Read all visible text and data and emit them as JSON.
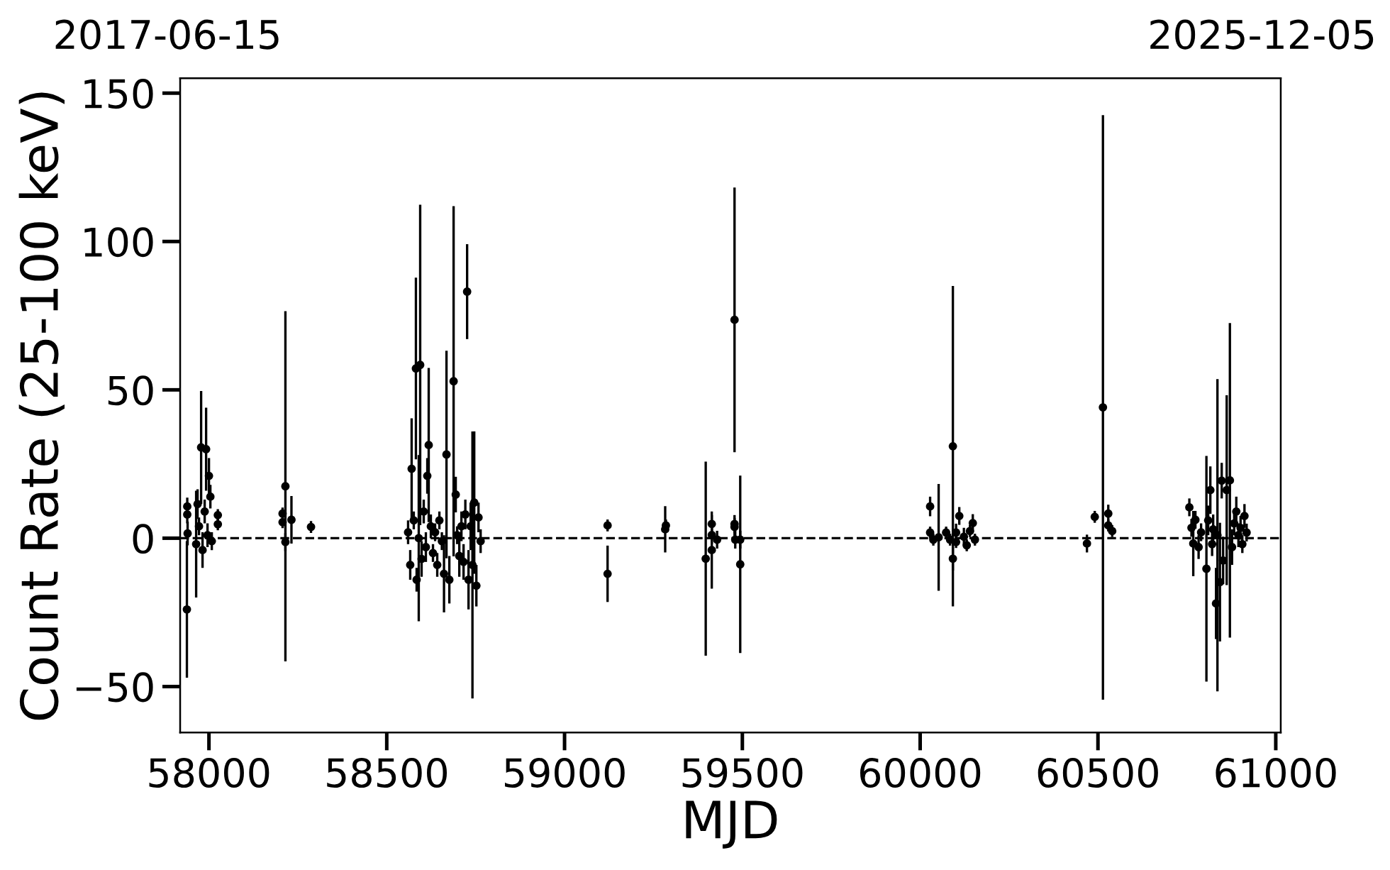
{
  "chart_data": {
    "type": "scatter",
    "xlabel": "MJD",
    "ylabel": "Count Rate (25-100 keV)",
    "annotations": [
      "2017-06-15",
      "2025-12-05"
    ],
    "xlim": [
      57919,
      61014
    ],
    "ylim": [
      -65.5,
      155
    ],
    "xticks": [
      58000,
      58500,
      59000,
      59500,
      60000,
      60500,
      61000
    ],
    "yticks": [
      {
        "value": -50,
        "label": "−50"
      },
      0,
      50,
      100,
      150
    ],
    "marker": "circle",
    "ref_lines": [
      {
        "axis": "y",
        "value": 0,
        "color": "#000000",
        "line_style": "dashed"
      }
    ],
    "series": [
      {
        "color": "#000000",
        "x": [
          57938,
          57939,
          57939,
          57940,
          57964,
          57968,
          57972,
          57978,
          57982,
          57988,
          57992,
          57996,
          58000,
          58004,
          58008,
          58025,
          58025,
          58207,
          58207,
          58215,
          58215,
          58232,
          58287,
          58560,
          58566,
          58570,
          58576,
          58582,
          58584,
          58590,
          58594,
          58598,
          58604,
          58610,
          58614,
          58618,
          58624,
          58630,
          58636,
          58642,
          58648,
          58655,
          58661,
          58668,
          58676,
          58688,
          58694,
          58698,
          58704,
          58710,
          58716,
          58721,
          58726,
          58730,
          58736,
          58741,
          58746,
          58752,
          58758,
          58764,
          59121,
          59121,
          59283,
          59285,
          59397,
          59414,
          59414,
          59414,
          59429,
          59478,
          59478,
          59478,
          59480,
          59494,
          59494,
          60028,
          60028,
          60037,
          60052,
          60073,
          60084,
          60092,
          60092,
          60101,
          60101,
          60110,
          60123,
          60131,
          60140,
          60148,
          60154,
          60469,
          60491,
          60514,
          60529,
          60529,
          60540,
          60757,
          60763,
          60768,
          60774,
          60783,
          60790,
          60805,
          60810,
          60816,
          60821,
          60824,
          60832,
          60836,
          60843,
          60848,
          60852,
          60862,
          60871,
          60877,
          60883,
          60889,
          60895,
          60901,
          60906,
          60912,
          60918
        ],
        "values": [
          -24,
          10.7,
          8,
          1.6,
          -2,
          11.5,
          4,
          30.6,
          -4,
          9,
          30,
          1,
          21,
          14,
          -1,
          7.8,
          4.7,
          8.3,
          5.4,
          17.5,
          -1.3,
          6.2,
          3.8,
          2,
          -9,
          23.4,
          6,
          57.2,
          -14,
          0,
          58.4,
          -7,
          9,
          -3,
          21,
          31.4,
          4,
          -5,
          2,
          -9,
          6,
          -1,
          -12,
          28.2,
          -14,
          52.9,
          14.7,
          1,
          -6,
          4,
          -8,
          8,
          83.1,
          -14,
          4,
          -9,
          12,
          -16,
          7,
          -1,
          4.3,
          -12,
          3,
          4.3,
          -6.9,
          4.8,
          1.1,
          -4,
          -0.5,
          73.6,
          4.8,
          3.8,
          -0.5,
          -8.8,
          -0.5,
          10.7,
          1.9,
          -0.5,
          0.3,
          1.9,
          -0.5,
          31,
          -6.9,
          1.9,
          -1.3,
          7.5,
          0.5,
          -2.4,
          2.4,
          5.1,
          -0.5,
          -1.8,
          7.2,
          44.1,
          8.3,
          4.3,
          2.4,
          10.4,
          3.5,
          -1.8,
          6.2,
          -3,
          2,
          -10.3,
          6,
          16.2,
          -2,
          3,
          -22,
          1,
          -14.8,
          19.4,
          -7.5,
          16.2,
          19.5,
          -3,
          5,
          9,
          1,
          3.5,
          -2,
          7.5,
          1.9
        ],
        "errors": [
          23,
          3,
          3,
          4,
          18,
          5,
          3,
          19,
          6,
          4,
          14,
          4,
          6,
          4,
          3,
          2,
          2,
          2,
          2,
          59,
          3,
          8,
          2,
          4,
          5,
          17,
          3,
          30.6,
          4,
          28,
          54,
          6,
          4,
          5,
          6,
          26,
          4,
          3,
          3,
          4,
          3,
          3,
          13,
          35,
          8,
          59,
          6,
          3,
          7,
          5,
          6,
          5,
          16,
          10,
          8,
          45,
          24,
          7,
          5,
          4,
          2,
          9.5,
          7.8,
          2,
          32.7,
          3,
          3,
          13,
          3,
          44.6,
          3,
          3,
          3,
          29.9,
          3,
          3.3,
          2,
          2,
          18,
          2,
          2,
          54,
          4,
          3,
          2,
          3,
          3,
          2,
          2,
          3,
          2,
          3,
          2,
          98.5,
          3,
          2,
          2,
          3,
          3,
          11,
          3,
          4,
          3,
          38,
          5,
          8,
          4,
          5,
          12,
          52.6,
          20,
          6,
          8,
          32,
          53,
          6,
          4,
          5,
          4,
          4,
          3,
          4,
          3
        ]
      }
    ]
  }
}
